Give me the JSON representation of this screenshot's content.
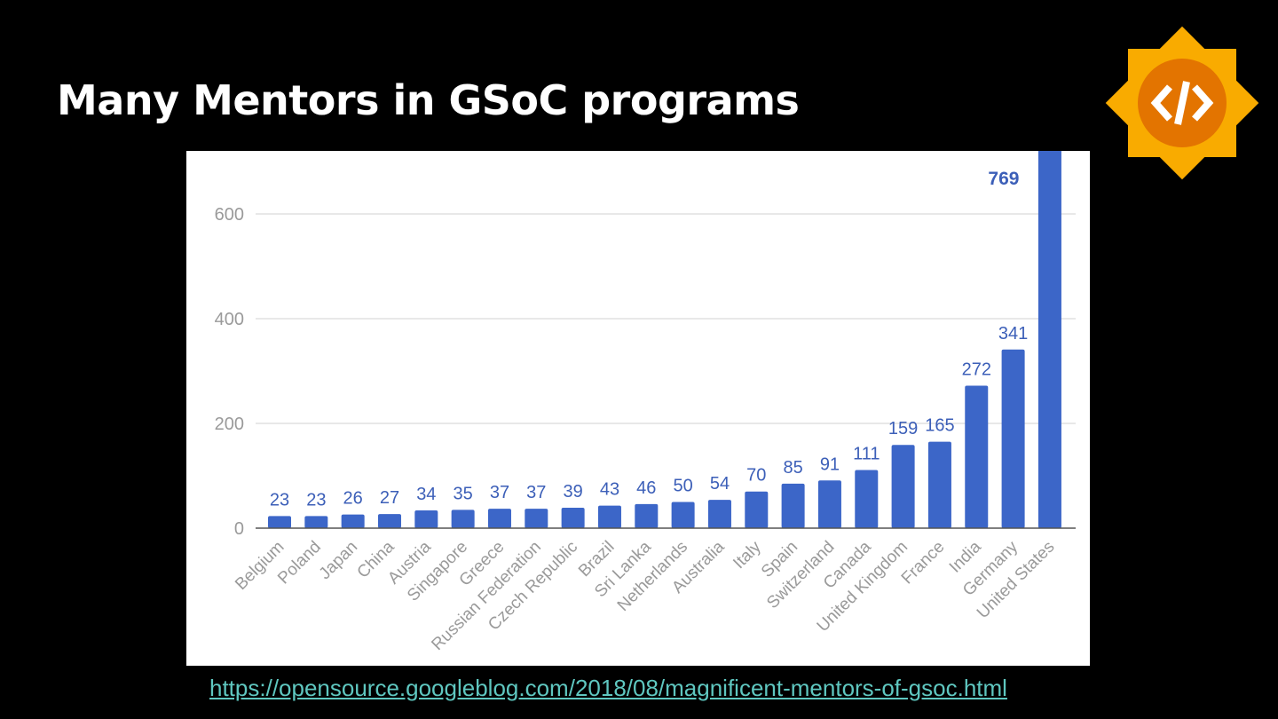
{
  "slide": {
    "title": "Many Mentors in GSoC programs",
    "source_link": "https://opensource.googleblog.com/2018/08/magnificent-mentors-of-gsoc.html",
    "logo_icon": "gsoc-sun-code-icon"
  },
  "colors": {
    "bar": "#3c66c8",
    "label": "#3c5fb8",
    "grid": "#d9d9d9",
    "axis_text": "#9a9a9a",
    "logo_outer": "#f9ab00",
    "logo_inner": "#e37400"
  },
  "chart_data": {
    "type": "bar",
    "title": "",
    "xlabel": "",
    "ylabel": "",
    "ylim": [
      0,
      700
    ],
    "yticks": [
      0,
      200,
      400,
      600
    ],
    "grid": true,
    "categories": [
      "Belgium",
      "Poland",
      "Japan",
      "China",
      "Austria",
      "Singapore",
      "Greece",
      "Russian Federation",
      "Czech Republic",
      "Brazil",
      "Sri Lanka",
      "Netherlands",
      "Australia",
      "Italy",
      "Spain",
      "Switzerland",
      "Canada",
      "United Kingdom",
      "France",
      "India",
      "Germany",
      "United States"
    ],
    "values": [
      23,
      23,
      26,
      27,
      34,
      35,
      37,
      37,
      39,
      43,
      46,
      50,
      54,
      70,
      85,
      91,
      111,
      159,
      165,
      272,
      341,
      769
    ]
  }
}
